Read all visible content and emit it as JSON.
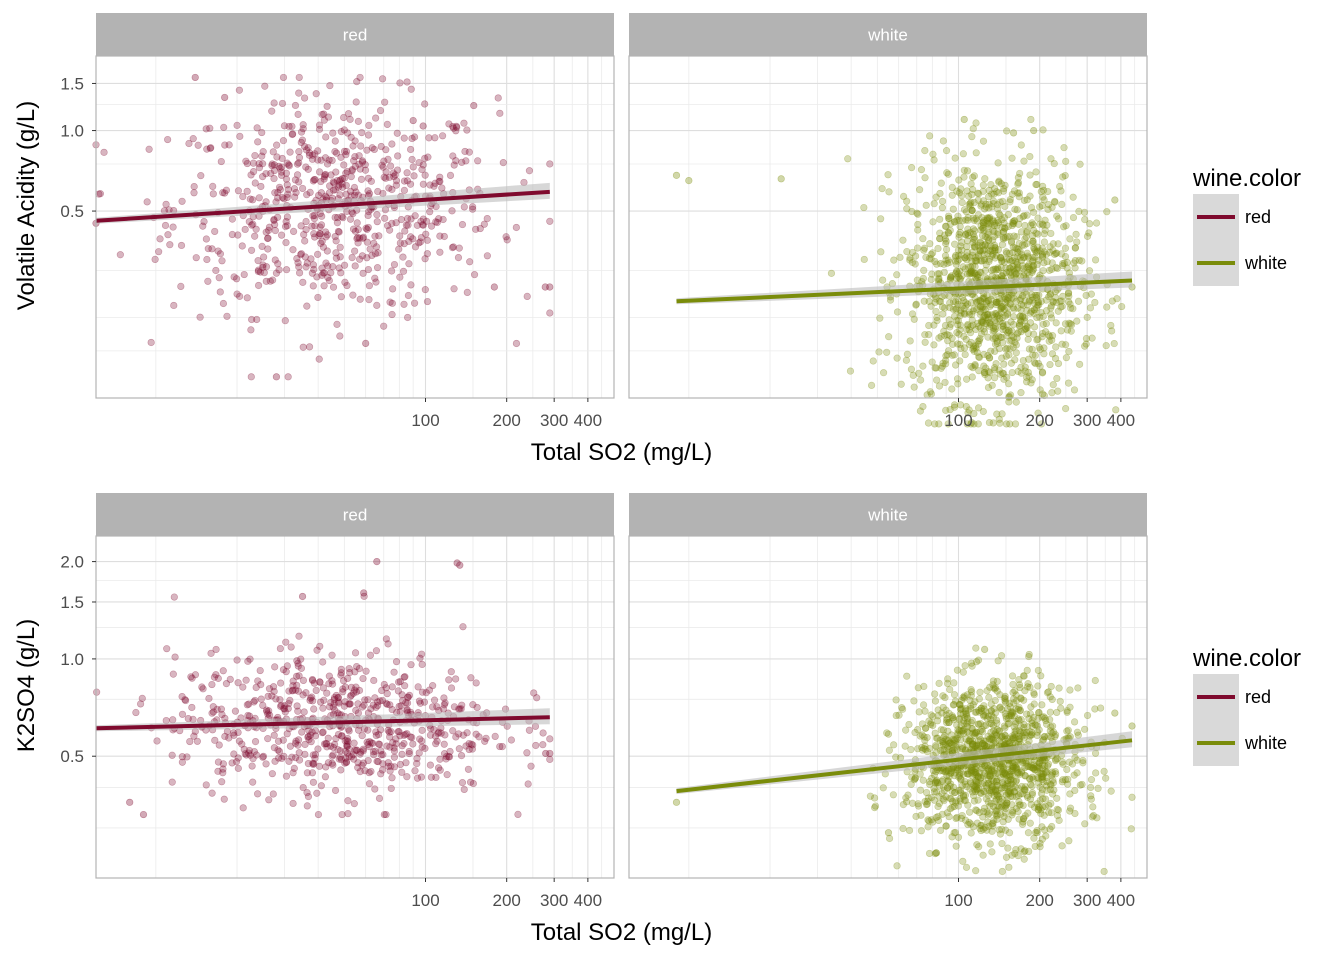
{
  "colors": {
    "red": "#7f0a2e",
    "white": "#7a8c0a",
    "strip": "#b3b3b3",
    "grid": "#dedede",
    "border": "#b3b3b3",
    "band": "#bdbdbd"
  },
  "chart_data": [
    {
      "type": "scatter",
      "title": "",
      "xlabel": "Total SO2 (mg/L)",
      "ylabel": "Volatile Acidity (g/L)",
      "x_scale": "log10",
      "y_scale": "log10",
      "x_ticks": [
        "100",
        "200",
        "300",
        "400"
      ],
      "y_ticks": [
        "0.5",
        "1.0",
        "1.5"
      ],
      "xlim": [
        6,
        500
      ],
      "ylim": [
        0.1,
        1.9
      ],
      "grid": true,
      "legend": {
        "title": "wine.color",
        "position": "right",
        "entries": [
          "red",
          "white"
        ]
      },
      "panels": [
        {
          "strip": "red",
          "series": "red",
          "trend": {
            "x": [
              6,
              289
            ],
            "y": [
              0.46,
              0.59
            ]
          },
          "point_cloud": {
            "x_center": 46,
            "x_spread": 0.3,
            "x_range": [
              6,
              289
            ],
            "y_center": 0.52,
            "y_spread": 0.2,
            "y_range": [
              0.12,
              1.58
            ],
            "count": 700
          },
          "outliers": [
            {
              "x": 14,
              "y": 1.58
            },
            {
              "x": 18,
              "y": 1.33
            },
            {
              "x": 151,
              "y": 1.24
            },
            {
              "x": 98,
              "y": 1.04
            },
            {
              "x": 90,
              "y": 1.09
            },
            {
              "x": 60,
              "y": 0.16
            },
            {
              "x": 28,
              "y": 0.12
            },
            {
              "x": 289,
              "y": 0.26
            },
            {
              "x": 278,
              "y": 0.26
            },
            {
              "x": 6,
              "y": 0.45
            },
            {
              "x": 180,
              "y": 0.26
            }
          ]
        },
        {
          "strip": "white",
          "series": "white",
          "trend": {
            "x": [
              9,
              440
            ],
            "y": [
              0.23,
              0.275
            ]
          },
          "point_cloud": {
            "x_center": 135,
            "x_spread": 0.16,
            "x_range": [
              9,
              440
            ],
            "y_center": 0.27,
            "y_spread": 0.22,
            "y_range": [
              0.08,
              1.1
            ],
            "count": 1300
          },
          "outliers": [
            {
              "x": 9,
              "y": 0.68
            },
            {
              "x": 10,
              "y": 0.65
            },
            {
              "x": 440,
              "y": 0.26
            },
            {
              "x": 380,
              "y": 0.55
            },
            {
              "x": 105,
              "y": 1.1
            },
            {
              "x": 22,
              "y": 0.66
            },
            {
              "x": 160,
              "y": 0.98
            },
            {
              "x": 190,
              "y": 1.0
            }
          ]
        }
      ]
    },
    {
      "type": "scatter",
      "title": "",
      "xlabel": "Total SO2 (mg/L)",
      "ylabel": "K2SO4 (g/L)",
      "x_scale": "log10",
      "y_scale": "log10",
      "x_ticks": [
        "100",
        "200",
        "300",
        "400"
      ],
      "y_ticks": [
        "0.5",
        "1.0",
        "1.5",
        "2.0"
      ],
      "xlim": [
        6,
        500
      ],
      "ylim": [
        0.21,
        2.4
      ],
      "grid": true,
      "legend": {
        "title": "wine.color",
        "position": "right",
        "entries": [
          "red",
          "white"
        ]
      },
      "panels": [
        {
          "strip": "red",
          "series": "red",
          "trend": {
            "x": [
              6,
              289
            ],
            "y": [
              0.61,
              0.66
            ]
          },
          "point_cloud": {
            "x_center": 46,
            "x_spread": 0.3,
            "x_range": [
              6,
              289
            ],
            "y_center": 0.63,
            "y_spread": 0.11,
            "y_range": [
              0.33,
              2.0
            ],
            "count": 700
          },
          "outliers": [
            {
              "x": 66,
              "y": 2.0
            },
            {
              "x": 131,
              "y": 1.98
            },
            {
              "x": 134,
              "y": 1.95
            },
            {
              "x": 35,
              "y": 1.56
            },
            {
              "x": 59,
              "y": 1.6
            },
            {
              "x": 8,
              "y": 0.36
            },
            {
              "x": 9,
              "y": 0.33
            },
            {
              "x": 289,
              "y": 0.51
            },
            {
              "x": 279,
              "y": 0.51
            }
          ]
        },
        {
          "strip": "white",
          "series": "white",
          "trend": {
            "x": [
              9,
              440
            ],
            "y": [
              0.39,
              0.56
            ]
          },
          "point_cloud": {
            "x_center": 135,
            "x_spread": 0.16,
            "x_range": [
              9,
              440
            ],
            "y_center": 0.48,
            "y_spread": 0.12,
            "y_range": [
              0.22,
              1.08
            ],
            "count": 1300
          },
          "outliers": [
            {
              "x": 9,
              "y": 0.36
            },
            {
              "x": 440,
              "y": 0.62
            },
            {
              "x": 380,
              "y": 0.68
            },
            {
              "x": 125,
              "y": 1.07
            },
            {
              "x": 55,
              "y": 0.29
            }
          ]
        }
      ]
    }
  ]
}
